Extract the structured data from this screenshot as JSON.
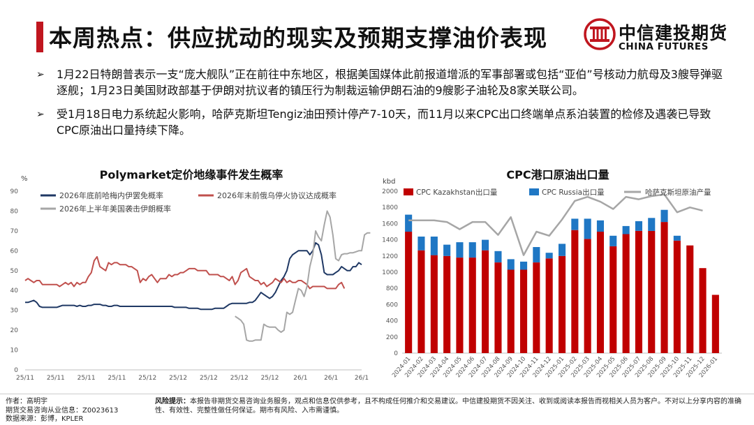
{
  "header": {
    "title": "本周热点：供应扰动的现实及预期支撑油价表现",
    "logo_cn": "中信建投期货",
    "logo_en": "CHINA FUTURES",
    "accent": "#c0161f"
  },
  "bullets": [
    {
      "icon": "arrow-bullet-icon",
      "glyph": "➢",
      "text": "1月22日特朗普表示一支“庞大舰队”正在前往中东地区，根据美国媒体此前报道增派的军事部署或包括“亚伯”号核动力航母及3艘导弹驱逐舰；1月23日美国财政部基于伊朗对抗议者的镇压行为制裁运输伊朗石油的9艘影子油轮及8家关联公司。"
    },
    {
      "icon": "arrow-bullet-icon",
      "glyph": "➢",
      "text": "受1月18日电力系统起火影响，哈萨克斯坦Tengiz油田预计停产7-10天，而11月以来CPC出口终端单点系泊装置的检修及遇袭已导致CPC原油出口量持续下降。"
    }
  ],
  "footer": {
    "author": "作者：高明宇",
    "license": "期货交易咨询从业信息：Z0023613",
    "source": "数据来源：彭博，KPLER",
    "risk_label": "风险提示：",
    "risk_text": "本报告非期货交易咨询业务服务，观点和信息仅供参考，且不构成任何推介和交易建议。中信建投期货不因关注、收到或阅读本报告而视相关人员为客户。不对以上分享内容的准确性、有效性、完整性做任何保证。期市有风险、入市需谨慎。"
  },
  "chart_data": [
    {
      "type": "line",
      "title": "Polymarket定价地缘事件发生概率",
      "ylabel": "%",
      "ylim": [
        0,
        90
      ],
      "yticks": [
        0,
        10,
        20,
        30,
        40,
        50,
        60,
        70,
        80,
        90
      ],
      "xticks": [
        "25/11",
        "25/11",
        "25/11",
        "25/11",
        "25/12",
        "25/12",
        "25/12",
        "25/12",
        "25/12",
        "26/1",
        "26/1",
        "26/1"
      ],
      "legend_position": "top",
      "series": [
        {
          "name": "2026年底前哈梅内伊罢免概率",
          "color": "#1f3864",
          "start": 0,
          "values": [
            34,
            34,
            34.5,
            35,
            34,
            32,
            31.5,
            31.5,
            31.5,
            31.5,
            31.5,
            31.5,
            32,
            32.5,
            32.5,
            32.5,
            32.5,
            32.5,
            32,
            32.5,
            32,
            32,
            32.5,
            32.5,
            33,
            33,
            33,
            32.5,
            32.5,
            32,
            32,
            32.5,
            32.5,
            32,
            32,
            32,
            32,
            32,
            32,
            32,
            32,
            32,
            32,
            32,
            32,
            32,
            32,
            32,
            32,
            32,
            32,
            32,
            31.5,
            31.5,
            31.5,
            31.5,
            31.5,
            31,
            31,
            31,
            31,
            30.5,
            30.5,
            30.5,
            30.5,
            30.5,
            31,
            31,
            31,
            31,
            32,
            33,
            33.5,
            33.5,
            33.5,
            33.5,
            33.5,
            33.5,
            34,
            34,
            35,
            37,
            39,
            38,
            37,
            36,
            37,
            39,
            42,
            45,
            47,
            50,
            56,
            58,
            59,
            60,
            60,
            60,
            60,
            58,
            60,
            64,
            63,
            58,
            49,
            48,
            48,
            48,
            49,
            50,
            52,
            51,
            50,
            50,
            52,
            52,
            54,
            53
          ]
        },
        {
          "name": "2026年末前俄乌停火协议达成概率",
          "color": "#c0504d",
          "start": 0,
          "values": [
            45,
            46,
            45,
            44,
            45,
            45,
            43,
            43,
            43,
            43,
            43,
            43,
            42,
            43,
            44,
            43,
            44,
            42,
            44,
            43,
            44,
            44,
            47,
            49,
            55,
            57,
            52,
            51,
            50,
            54,
            53,
            54,
            54,
            53,
            53,
            53,
            52,
            52,
            51,
            50,
            44,
            46,
            45,
            47,
            48,
            46,
            44,
            46,
            46,
            46,
            48,
            47,
            48,
            48,
            49,
            49,
            50,
            51,
            51,
            51,
            50,
            50,
            50,
            50,
            48,
            48,
            48,
            48,
            47,
            47,
            46,
            45,
            47,
            43,
            45,
            49,
            50,
            51,
            47,
            46,
            45,
            45,
            43,
            44,
            42,
            43,
            44,
            46,
            45,
            44,
            46,
            44,
            45,
            44,
            44,
            45,
            45,
            44,
            43,
            41,
            42,
            42,
            42,
            42,
            42,
            41,
            41,
            41,
            41,
            43,
            44,
            41
          ]
        },
        {
          "name": "2026年上半年美国袭击伊朗概率",
          "color": "#a6a6a6",
          "start": 73,
          "values": [
            27,
            26,
            25,
            23,
            15,
            14.5,
            14.5,
            15,
            15,
            15,
            23,
            22,
            21.5,
            21.5,
            21.5,
            20,
            19,
            20,
            29,
            28,
            29,
            35,
            41,
            40,
            37,
            42,
            52,
            58,
            70,
            67,
            65,
            73,
            80,
            77,
            68,
            56,
            55,
            58,
            58.5,
            58.5,
            59,
            59,
            59.5,
            60,
            60,
            68,
            69,
            69
          ]
        }
      ]
    },
    {
      "type": "bar",
      "title": "CPC港口原油出口量",
      "ylabel": "kbd",
      "ylim": [
        0,
        2000
      ],
      "yticks": [
        0,
        200,
        400,
        600,
        800,
        1000,
        1200,
        1400,
        1600,
        1800,
        2000
      ],
      "legend_position": "top",
      "categories": [
        "2024-01",
        "2024-02",
        "2024-03",
        "2024-04",
        "2024-05",
        "2024-06",
        "2024-07",
        "2024-08",
        "2024-09",
        "2024-10",
        "2024-11",
        "2024-12",
        "2025-01",
        "2025-02",
        "2025-03",
        "2025-04",
        "2025-05",
        "2025-06",
        "2025-07",
        "2025-08",
        "2025-09",
        "2025-10",
        "2025-11",
        "2025-12",
        "2026-01"
      ],
      "series": [
        {
          "name": "CPC Kazakhstan出口量",
          "color": "#c00000",
          "kind": "bar",
          "values": [
            1500,
            1270,
            1210,
            1200,
            1180,
            1180,
            1270,
            1120,
            1030,
            1030,
            1120,
            1170,
            1200,
            1520,
            1410,
            1500,
            1320,
            1470,
            1510,
            1510,
            1620,
            1390,
            1330,
            1050,
            720
          ]
        },
        {
          "name": "CPC Russia出口量",
          "color": "#1f77c4",
          "kind": "bar",
          "values": [
            210,
            170,
            230,
            140,
            190,
            190,
            130,
            140,
            130,
            100,
            190,
            70,
            150,
            140,
            250,
            140,
            130,
            100,
            120,
            160,
            150,
            60,
            0,
            0,
            0
          ]
        },
        {
          "name": "哈萨克斯坦原油产量",
          "color": "#a6a6a6",
          "kind": "line",
          "values": [
            1640,
            1640,
            1640,
            1620,
            1530,
            1620,
            1620,
            1460,
            1680,
            1210,
            1500,
            1450,
            1650,
            1880,
            1930,
            1870,
            1780,
            1930,
            1900,
            1940,
            1960,
            1740,
            1800,
            1760,
            null
          ]
        }
      ]
    }
  ]
}
